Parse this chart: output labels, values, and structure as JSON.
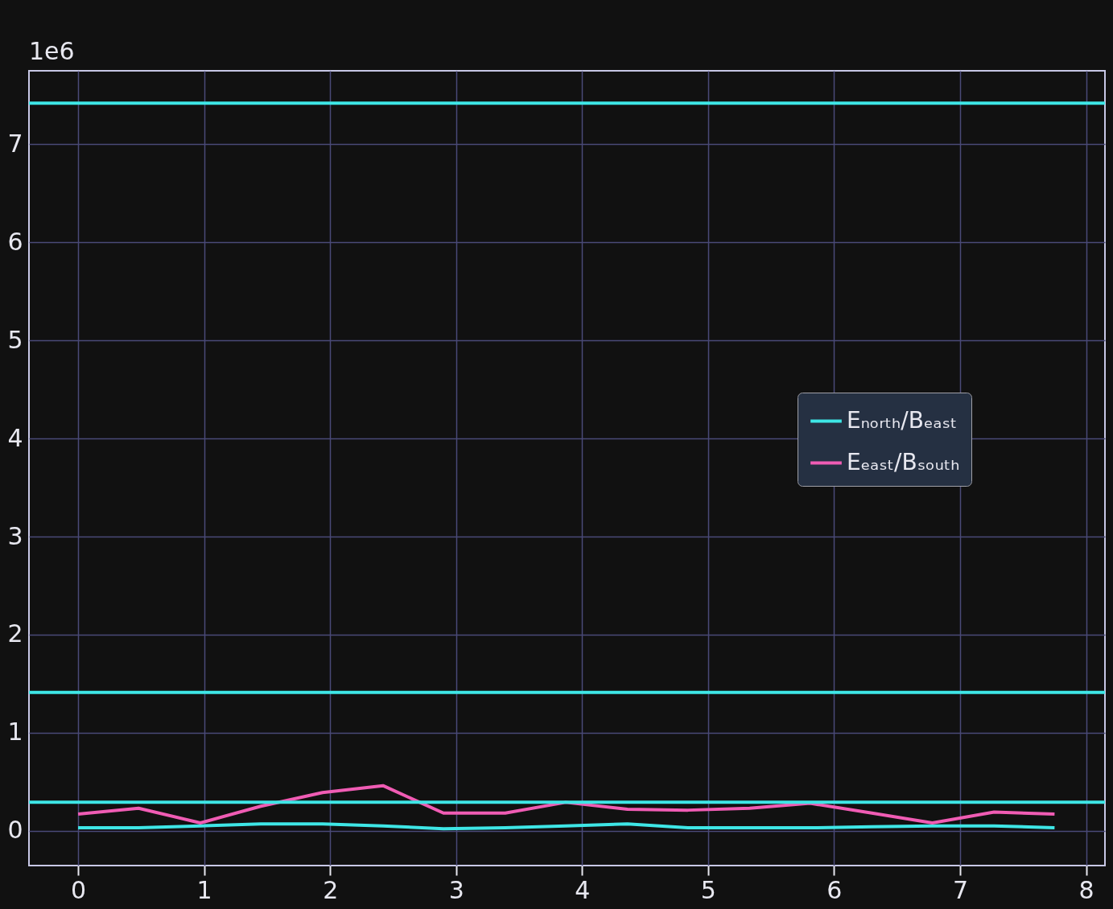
{
  "chart_data": {
    "type": "line",
    "x": [
      0,
      0.48,
      0.97,
      1.45,
      1.94,
      2.42,
      2.9,
      3.39,
      3.87,
      4.36,
      4.84,
      5.33,
      5.81,
      6.3,
      6.78,
      7.27,
      7.75
    ],
    "series": [
      {
        "name": "Eₙₒᵣₜₕ/Bₑₐₛₜ",
        "color": "#3ee6e6",
        "values": [
          0.03,
          0.03,
          0.05,
          0.07,
          0.07,
          0.05,
          0.02,
          0.03,
          0.05,
          0.07,
          0.03,
          0.03,
          0.03,
          0.04,
          0.05,
          0.05,
          0.03
        ]
      },
      {
        "name": "Eₑₐₛₜ/Bₛₒᵤₜₕ",
        "color": "#f05cb4",
        "values": [
          0.17,
          0.23,
          0.08,
          0.25,
          0.39,
          0.46,
          0.18,
          0.18,
          0.29,
          0.22,
          0.21,
          0.23,
          0.28,
          0.18,
          0.08,
          0.19,
          0.17
        ]
      }
    ],
    "ref_lines": [
      {
        "axis": "y",
        "value": 7.42,
        "color": "#3ee6e6"
      },
      {
        "axis": "y",
        "value": 1.41,
        "color": "#3ee6e6"
      },
      {
        "axis": "y",
        "value": 0.29,
        "color": "#3ee6e6"
      }
    ],
    "xlim": [
      -0.39,
      8.15
    ],
    "xticks": [
      0,
      1,
      2,
      3,
      4,
      5,
      6,
      7,
      8
    ],
    "ylim": [
      -0.355,
      7.75
    ],
    "yticks": [
      0,
      1,
      2,
      3,
      4,
      5,
      6,
      7
    ],
    "annotations": [
      "1e6"
    ],
    "grid": true,
    "legend": "right",
    "marker": "none",
    "line_style": "solid"
  }
}
